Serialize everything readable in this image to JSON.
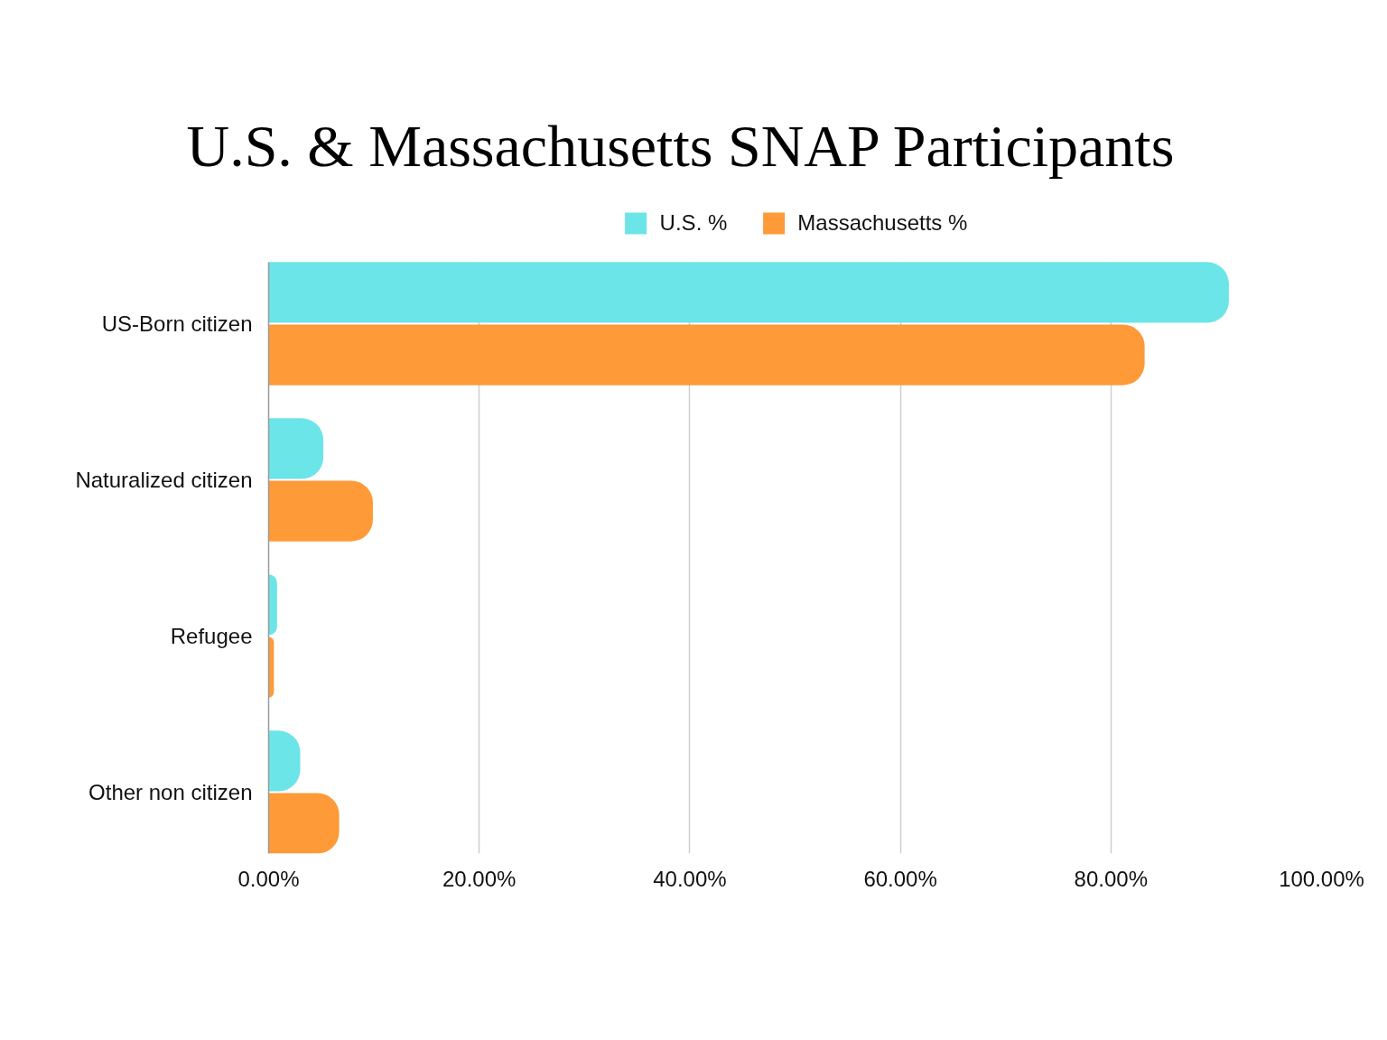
{
  "chart_data": {
    "type": "bar",
    "orientation": "horizontal",
    "title": "U.S. & Massachusetts SNAP Participants",
    "categories": [
      "US-Born citizen",
      "Naturalized citizen",
      "Refugee",
      "Other non citizen"
    ],
    "series": [
      {
        "name": "U.S. %",
        "color": "#6ce5e8",
        "values": [
          91.2,
          5.2,
          0.8,
          3.0
        ]
      },
      {
        "name": "Massachusetts %",
        "color": "#fe9a37",
        "values": [
          83.2,
          9.9,
          0.5,
          6.7
        ]
      }
    ],
    "xlim": [
      0,
      100
    ],
    "xticks": [
      {
        "value": 0,
        "label": "0.00%"
      },
      {
        "value": 20,
        "label": "20.00%"
      },
      {
        "value": 40,
        "label": "40.00%"
      },
      {
        "value": 60,
        "label": "60.00%"
      },
      {
        "value": 80,
        "label": "80.00%"
      },
      {
        "value": 100,
        "label": "100.00%"
      }
    ],
    "grid": "x",
    "legend": "top"
  }
}
